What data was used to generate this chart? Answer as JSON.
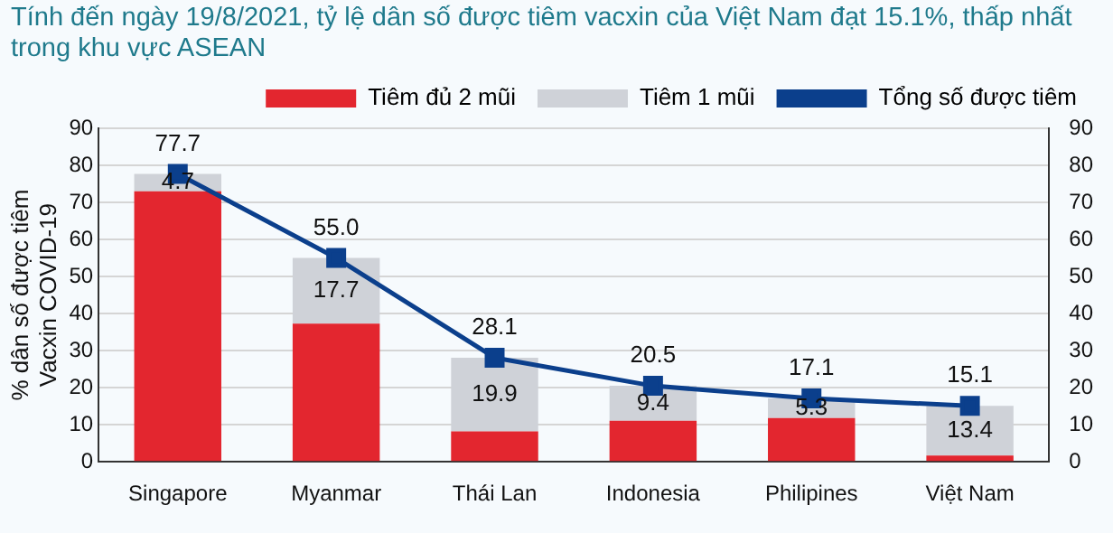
{
  "chart_data": {
    "type": "bar",
    "title": "Tính đến ngày 19/8/2021, tỷ lệ dân số được tiêm vacxin của Việt Nam đạt 15.1%, thấp nhất trong khu vực ASEAN",
    "ylabel": "% dân số được tiêm Vacxin COVID-19",
    "categories": [
      "Singapore",
      "Myanmar",
      "Thái Lan",
      "Indonesia",
      "Philipines",
      "Việt Nam"
    ],
    "stacked": true,
    "series": [
      {
        "name": "Tiêm đủ 2 mũi",
        "color": "#e3262f",
        "values": [
          73.0,
          37.3,
          8.2,
          11.1,
          11.8,
          1.7
        ]
      },
      {
        "name": "Tiêm 1 mũi",
        "color": "#cfd2d8",
        "values": [
          4.7,
          17.7,
          19.9,
          9.4,
          5.3,
          13.4
        ],
        "value_labels": [
          "4.7",
          "17.7",
          "19.9",
          "9.4",
          "5.3",
          "13.4"
        ]
      },
      {
        "name": "Tổng số được tiêm",
        "type": "line",
        "color": "#0b3f8c",
        "marker": "square",
        "values": [
          77.7,
          55.0,
          28.1,
          20.5,
          17.1,
          15.1
        ],
        "value_labels": [
          "77.7",
          "55.0",
          "28.1",
          "20.5",
          "17.1",
          "15.1"
        ]
      }
    ],
    "ylim": [
      0,
      90
    ],
    "yticks": [
      0,
      10,
      20,
      30,
      40,
      50,
      60,
      70,
      80,
      90
    ],
    "y2lim": [
      0,
      90
    ],
    "y2ticks": [
      0,
      10,
      20,
      30,
      40,
      50,
      60,
      70,
      80,
      90
    ],
    "grid": "y",
    "legend": "top right"
  }
}
